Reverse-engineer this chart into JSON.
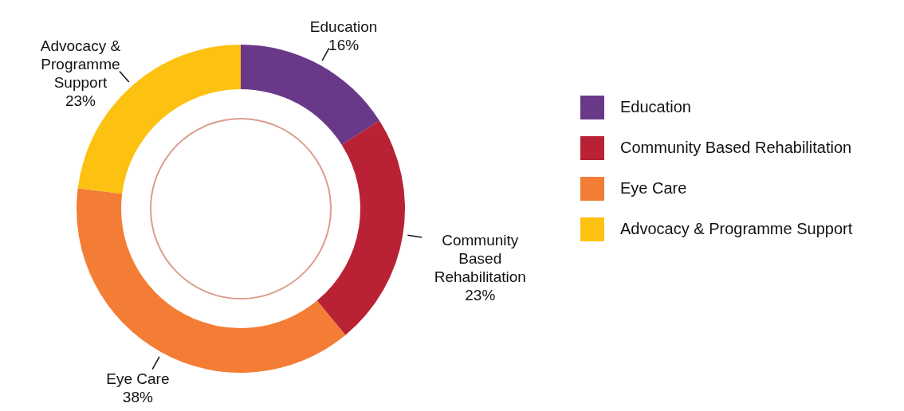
{
  "chart_data": {
    "type": "donut",
    "categories": [
      "Education",
      "Community Based Rehabilitation",
      "Eye Care",
      "Advocacy & Programme Support"
    ],
    "values": [
      16,
      23,
      38,
      23
    ],
    "value_labels": [
      "16%",
      "23%",
      "38%",
      "23%"
    ],
    "colors": [
      "#6a3888",
      "#b82234",
      "#f47d35",
      "#fdc112"
    ],
    "legend": "right"
  }
}
